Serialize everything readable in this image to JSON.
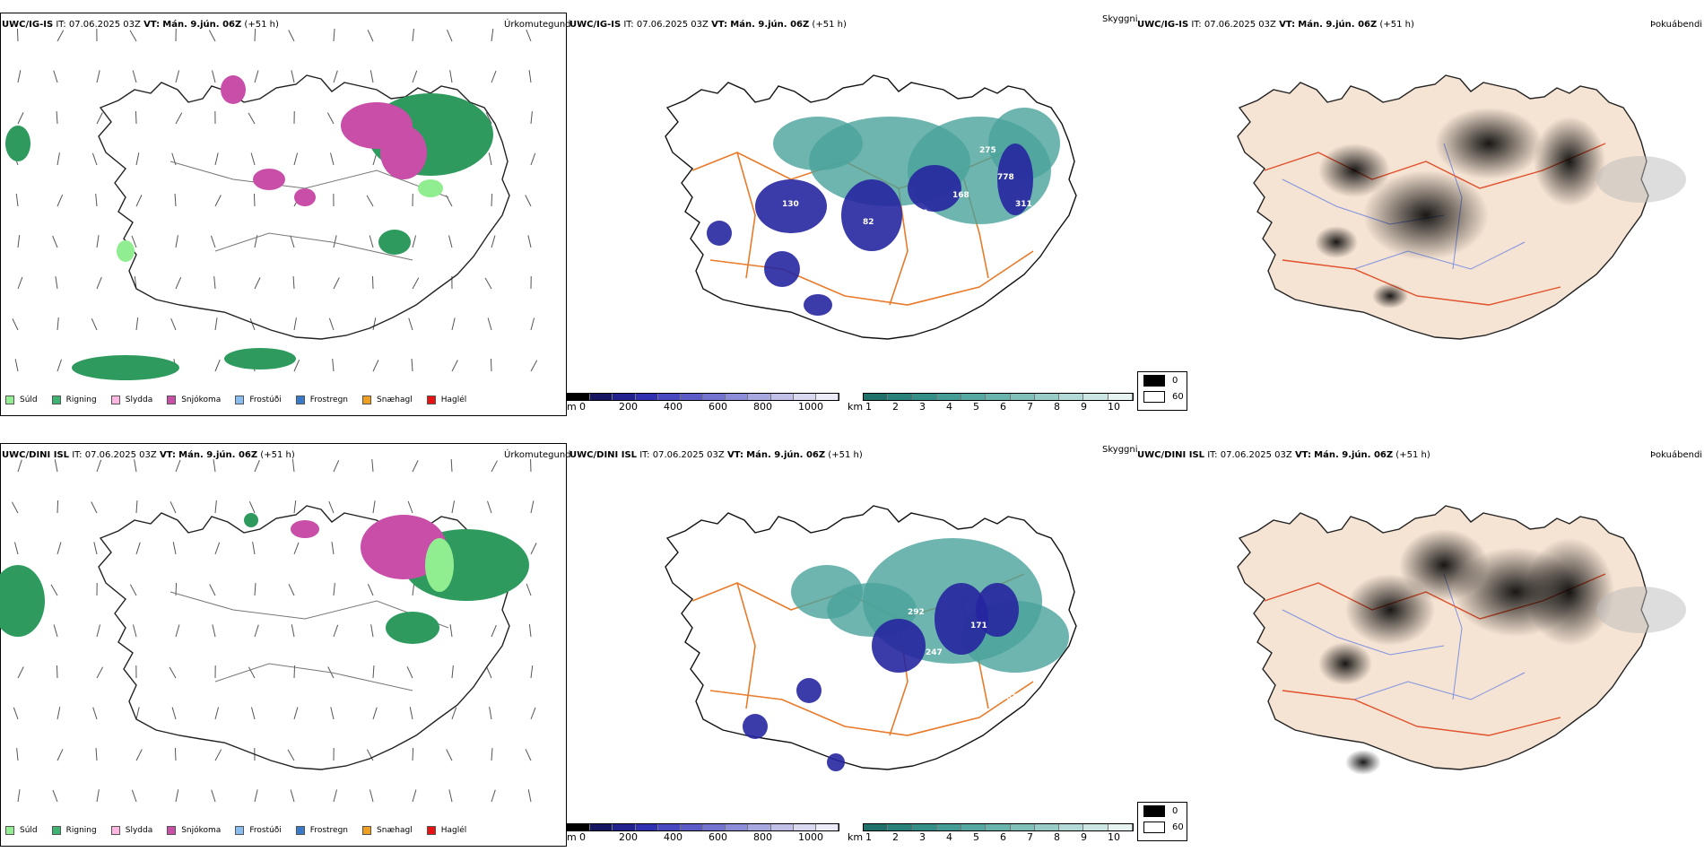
{
  "rows": [
    {
      "model": "UWC/IG-IS",
      "init_label": "IT:",
      "init_time": "07.06.2025 03Z",
      "valid_label": "VT:",
      "valid_time": "Mán. 9.jún. 06Z",
      "lead": "(+51 h)"
    },
    {
      "model": "UWC/DINI ISL",
      "init_label": "IT:",
      "init_time": "07.06.2025 03Z",
      "valid_label": "VT:",
      "valid_time": "Mán. 9.jún. 06Z",
      "lead": "(+51 h)"
    }
  ],
  "panels": {
    "precip_type": {
      "title": "Úrkomutegund",
      "legend": [
        {
          "label": "Súld",
          "color": "#90ee90"
        },
        {
          "label": "Rigning",
          "color": "#3cb371"
        },
        {
          "label": "Slydda",
          "color": "#ffb6e1"
        },
        {
          "label": "Snjókoma",
          "color": "#c84ea8"
        },
        {
          "label": "Frostúði",
          "color": "#87bdf0"
        },
        {
          "label": "Frostregn",
          "color": "#3a78c8"
        },
        {
          "label": "Snæhagl",
          "color": "#f0a020"
        },
        {
          "label": "Haglél",
          "color": "#e81010"
        }
      ]
    },
    "cloud_base": {
      "title": "Skyggni",
      "elev_unit": "m",
      "elev_ticks": [
        "0",
        "200",
        "400",
        "600",
        "800",
        "1000"
      ],
      "elev_colors": [
        "#000000",
        "#151560",
        "#22228f",
        "#3030b0",
        "#4848c0",
        "#5c5cc8",
        "#7474d0",
        "#8c8cd8",
        "#a8a8e0",
        "#c0c0e8",
        "#d8d8f0",
        "#ecebf8"
      ],
      "vis_unit": "km",
      "vis_ticks": [
        "1",
        "2",
        "3",
        "4",
        "5",
        "6",
        "7",
        "8",
        "9",
        "10"
      ],
      "vis_colors": [
        "#20706c",
        "#2a807a",
        "#358f89",
        "#449c96",
        "#56a8a2",
        "#6ab4ae",
        "#80c0ba",
        "#98ccc7",
        "#b2dad6",
        "#cce6e3",
        "#e6f3f1"
      ]
    },
    "fog": {
      "title": "Þokuábendi",
      "legend": [
        {
          "label": "0",
          "color": "#000000"
        },
        {
          "label": "60",
          "color": "#ffffff"
        }
      ]
    }
  },
  "colors": {
    "rain": "#2e9a5e",
    "snow": "#c84ea8",
    "drizzle": "#90ee90",
    "cloud_blue": "#2626a0",
    "cloud_teal": "#4aa39c",
    "road_orange": "#e87a2a",
    "land_beige": "#f5e3d3",
    "river_blue": "#7f93e0"
  }
}
